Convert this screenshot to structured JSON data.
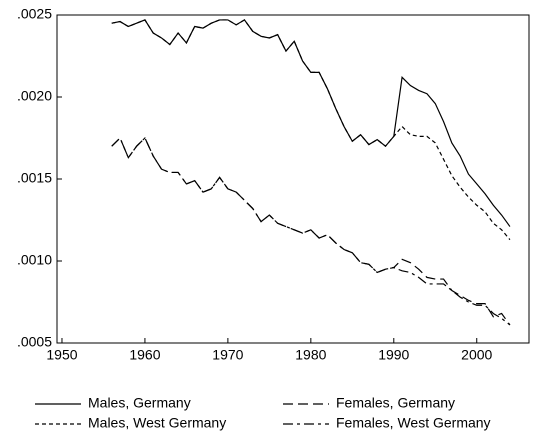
{
  "chart_data": {
    "type": "line",
    "x": [
      1956,
      1957,
      1958,
      1959,
      1960,
      1961,
      1962,
      1963,
      1964,
      1965,
      1966,
      1967,
      1968,
      1969,
      1970,
      1971,
      1972,
      1973,
      1974,
      1975,
      1976,
      1977,
      1978,
      1979,
      1980,
      1981,
      1982,
      1983,
      1984,
      1985,
      1986,
      1987,
      1988,
      1989,
      1990,
      1991,
      1992,
      1993,
      1994,
      1995,
      1996,
      1997,
      1998,
      1999,
      2000,
      2001,
      2002,
      2003,
      2004
    ],
    "series": [
      {
        "name": "Males, Germany",
        "color": "#000000",
        "linestyle": "solid",
        "values": [
          0.00245,
          0.00246,
          0.00243,
          0.00245,
          0.00247,
          0.00239,
          0.00236,
          0.00232,
          0.00239,
          0.00233,
          0.00243,
          0.00242,
          0.00245,
          0.00247,
          0.00247,
          0.00244,
          0.00247,
          0.0024,
          0.00237,
          0.00236,
          0.00238,
          0.00228,
          0.00234,
          0.00222,
          0.00215,
          0.00215,
          0.00205,
          0.00193,
          0.00182,
          0.00173,
          0.00177,
          0.00171,
          0.00174,
          0.0017,
          0.00176,
          0.00212,
          0.00207,
          0.00204,
          0.00202,
          0.00196,
          0.00185,
          0.00172,
          0.00164,
          0.00153,
          0.00147,
          0.00141,
          0.00134,
          0.00128,
          0.00121
        ]
      },
      {
        "name": "Females, Germany",
        "color": "#000000",
        "linestyle": "longdash",
        "values": [
          0.0017,
          0.00175,
          0.00163,
          0.0017,
          0.00175,
          0.00164,
          0.00156,
          0.00154,
          0.00154,
          0.00147,
          0.00149,
          0.00142,
          0.00144,
          0.00151,
          0.00144,
          0.00142,
          0.00137,
          0.00132,
          0.00124,
          0.00128,
          0.00123,
          0.00121,
          0.00119,
          0.00117,
          0.00119,
          0.00114,
          0.00116,
          0.00111,
          0.00107,
          0.00105,
          0.00099,
          0.00098,
          0.00093,
          0.00095,
          0.00096,
          0.00101,
          0.00099,
          0.00095,
          0.0009,
          0.00089,
          0.00089,
          0.00082,
          0.00079,
          0.00076,
          0.00074,
          0.00074,
          0.00066,
          0.00068,
          0.00061
        ]
      },
      {
        "name": "Males, West Germany",
        "color": "#000000",
        "linestyle": "dashed",
        "values": [
          0.00245,
          0.00246,
          0.00243,
          0.00245,
          0.00247,
          0.00239,
          0.00236,
          0.00232,
          0.00239,
          0.00233,
          0.00243,
          0.00242,
          0.00245,
          0.00247,
          0.00247,
          0.00244,
          0.00247,
          0.0024,
          0.00237,
          0.00236,
          0.00238,
          0.00228,
          0.00234,
          0.00222,
          0.00215,
          0.00215,
          0.00205,
          0.00193,
          0.00182,
          0.00173,
          0.00177,
          0.00171,
          0.00174,
          0.0017,
          0.00176,
          0.00182,
          0.00177,
          0.00176,
          0.00176,
          0.00172,
          0.00162,
          0.00152,
          0.00145,
          0.00139,
          0.00134,
          0.0013,
          0.00123,
          0.00119,
          0.00113
        ]
      },
      {
        "name": "Females, West Germany",
        "color": "#000000",
        "linestyle": "dashdot",
        "values": [
          0.0017,
          0.00175,
          0.00163,
          0.0017,
          0.00175,
          0.00164,
          0.00156,
          0.00154,
          0.00154,
          0.00147,
          0.00149,
          0.00142,
          0.00144,
          0.00151,
          0.00144,
          0.00142,
          0.00137,
          0.00132,
          0.00124,
          0.00128,
          0.00123,
          0.00121,
          0.00119,
          0.00117,
          0.00119,
          0.00114,
          0.00116,
          0.00111,
          0.00107,
          0.00105,
          0.00099,
          0.00098,
          0.00093,
          0.00095,
          0.00096,
          0.00094,
          0.00093,
          0.0009,
          0.00086,
          0.00086,
          0.00086,
          0.00082,
          0.00078,
          0.00075,
          0.00073,
          0.00073,
          0.00068,
          0.00065,
          0.00061
        ]
      }
    ],
    "xlim": [
      1949.4,
      2006.3
    ],
    "xticks": [
      1950,
      1960,
      1970,
      1980,
      1990,
      2000
    ],
    "ylim": [
      0.0005,
      0.0025
    ],
    "yticks": [
      {
        "value": 0.0005,
        "label": ".0005"
      },
      {
        "value": 0.001,
        "label": ".0010"
      },
      {
        "value": 0.0015,
        "label": ".0015"
      },
      {
        "value": 0.002,
        "label": ".0020"
      },
      {
        "value": 0.0025,
        "label": ".0025"
      }
    ],
    "grid": false,
    "legend": "bottom"
  }
}
